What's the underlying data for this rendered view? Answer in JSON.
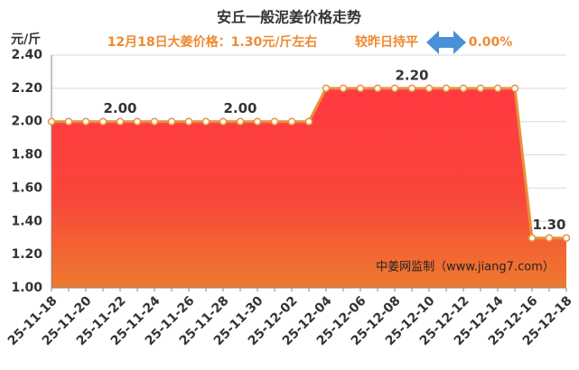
{
  "chart_data": {
    "type": "area",
    "title": "安丘一般泥姜价格走势",
    "subtitle": "12月18日大姜价格：1.30元/斤左右",
    "change_label": "较昨日持平",
    "change_value": "0.00%",
    "y_axis_label": "元/斤",
    "annotation": "中姜网监制（www.jiang7.com）",
    "categories": [
      "25-11-18",
      null,
      "25-11-20",
      null,
      "25-11-22",
      null,
      "25-11-24",
      null,
      "25-11-26",
      null,
      "25-11-28",
      null,
      "25-11-30",
      null,
      "25-12-02",
      null,
      "25-12-04",
      null,
      "25-12-06",
      null,
      "25-12-08",
      null,
      "25-12-10",
      null,
      "25-12-12",
      null,
      "25-12-14",
      null,
      "25-12-16",
      null,
      "25-12-18"
    ],
    "values": [
      2.0,
      2.0,
      2.0,
      2.0,
      2.0,
      2.0,
      2.0,
      2.0,
      2.0,
      2.0,
      2.0,
      2.0,
      2.0,
      2.0,
      2.0,
      2.0,
      2.2,
      2.2,
      2.2,
      2.2,
      2.2,
      2.2,
      2.2,
      2.2,
      2.2,
      2.2,
      2.2,
      2.2,
      1.3,
      1.3,
      1.3
    ],
    "value_labels": [
      null,
      null,
      null,
      null,
      "2.00",
      null,
      null,
      null,
      null,
      null,
      null,
      "2.00",
      null,
      null,
      null,
      null,
      null,
      null,
      null,
      null,
      null,
      "2.20",
      null,
      null,
      null,
      null,
      null,
      null,
      null,
      "1.30",
      null
    ],
    "color": "#e8923a",
    "ylim": [
      1.0,
      2.4
    ],
    "yticks": [
      {
        "value": 1.0,
        "label": "1.00"
      },
      {
        "value": 1.2,
        "label": "1.20"
      },
      {
        "value": 1.4,
        "label": "1.40"
      },
      {
        "value": 1.6,
        "label": "1.60"
      },
      {
        "value": 1.8,
        "label": "1.80"
      },
      {
        "value": 2.0,
        "label": "2.00"
      },
      {
        "value": 2.2,
        "label": "2.20"
      },
      {
        "value": 2.4,
        "label": "2.40"
      }
    ],
    "grid": true
  }
}
